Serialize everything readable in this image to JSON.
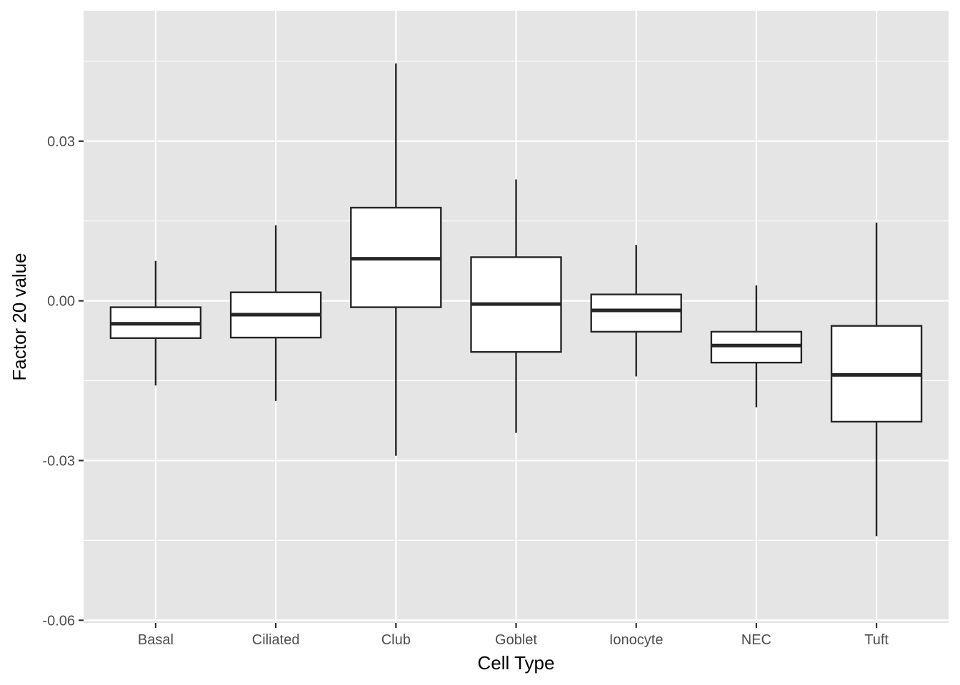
{
  "chart_data": {
    "type": "box",
    "xlabel": "Cell Type",
    "ylabel": "Factor 20 value",
    "ylim": [
      -0.0605,
      0.0545
    ],
    "yticks": [
      {
        "value": 0.03,
        "label": "0.03"
      },
      {
        "value": 0.0,
        "label": "0.00"
      },
      {
        "value": -0.03,
        "label": "-0.03"
      },
      {
        "value": -0.06,
        "label": "-0.06"
      }
    ],
    "grid": true,
    "colors": {
      "panel": "#e5e5e5",
      "grid": "#ffffff",
      "box_fill": "#ffffff",
      "box_stroke": "#262626"
    },
    "categories": [
      "Basal",
      "Ciliated",
      "Club",
      "Goblet",
      "Ionocyte",
      "NEC",
      "Tuft"
    ],
    "boxes": [
      {
        "category": "Basal",
        "lower_whisker": -0.0159,
        "q1": -0.007,
        "median": -0.0043,
        "q3": -0.0012,
        "upper_whisker": 0.0075
      },
      {
        "category": "Ciliated",
        "lower_whisker": -0.0188,
        "q1": -0.0069,
        "median": -0.0026,
        "q3": 0.0016,
        "upper_whisker": 0.0142
      },
      {
        "category": "Club",
        "lower_whisker": -0.0291,
        "q1": -0.0012,
        "median": 0.0079,
        "q3": 0.0175,
        "upper_whisker": 0.0446
      },
      {
        "category": "Goblet",
        "lower_whisker": -0.0248,
        "q1": -0.0096,
        "median": -0.0006,
        "q3": 0.0082,
        "upper_whisker": 0.0228
      },
      {
        "category": "Ionocyte",
        "lower_whisker": -0.0142,
        "q1": -0.0058,
        "median": -0.0018,
        "q3": 0.0012,
        "upper_whisker": 0.0105
      },
      {
        "category": "NEC",
        "lower_whisker": -0.02,
        "q1": -0.0116,
        "median": -0.0084,
        "q3": -0.0058,
        "upper_whisker": 0.0029
      },
      {
        "category": "Tuft",
        "lower_whisker": -0.0442,
        "q1": -0.0227,
        "median": -0.0139,
        "q3": -0.0047,
        "upper_whisker": 0.0147
      }
    ]
  }
}
